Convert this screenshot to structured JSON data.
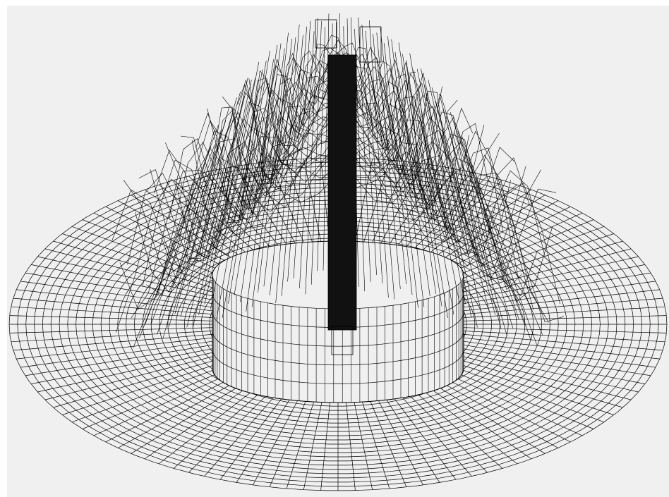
{
  "figure": {
    "render_style": "wireframe mesh",
    "background_color": "#f0f0f0",
    "line_color": "#000000",
    "shape": "axisymmetric disc with central raised core and dense vertical columns"
  }
}
